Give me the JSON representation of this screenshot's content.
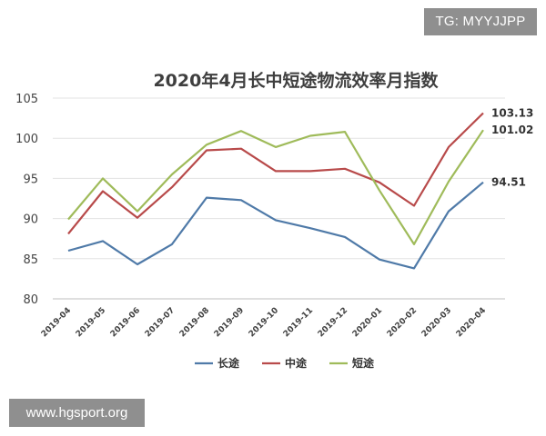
{
  "watermarks": {
    "top_right": "TG: MYYJJPP",
    "bottom_left": "www.hgsport.org"
  },
  "chart_data": {
    "type": "line",
    "title": "2020年4月长中短途物流效率月指数",
    "categories": [
      "2019-04",
      "2019-05",
      "2019-06",
      "2019-07",
      "2019-08",
      "2019-09",
      "2019-10",
      "2019-11",
      "2019-12",
      "2020-01",
      "2020-02",
      "2020-03",
      "2020-04"
    ],
    "ylim": [
      80,
      105
    ],
    "yticks": [
      "80",
      "85",
      "90",
      "95",
      "100",
      "105"
    ],
    "grid": true,
    "legend_position": "bottom",
    "series": [
      {
        "name": "长途",
        "color": "#4f7aa8",
        "values": [
          86.0,
          87.2,
          84.3,
          86.8,
          92.6,
          92.3,
          89.8,
          88.8,
          87.7,
          84.9,
          83.8,
          90.9,
          94.51
        ],
        "end_label": "94.51"
      },
      {
        "name": "中途",
        "color": "#b84a4a",
        "values": [
          88.1,
          93.4,
          90.1,
          93.9,
          98.5,
          98.7,
          95.9,
          95.9,
          96.2,
          94.5,
          91.6,
          98.9,
          103.13
        ],
        "end_label": "103.13"
      },
      {
        "name": "短途",
        "color": "#9fbb5a",
        "values": [
          89.9,
          95.0,
          90.9,
          95.5,
          99.2,
          100.9,
          98.9,
          100.3,
          100.8,
          93.5,
          86.8,
          94.6,
          101.02
        ],
        "end_label": "101.02"
      }
    ]
  }
}
